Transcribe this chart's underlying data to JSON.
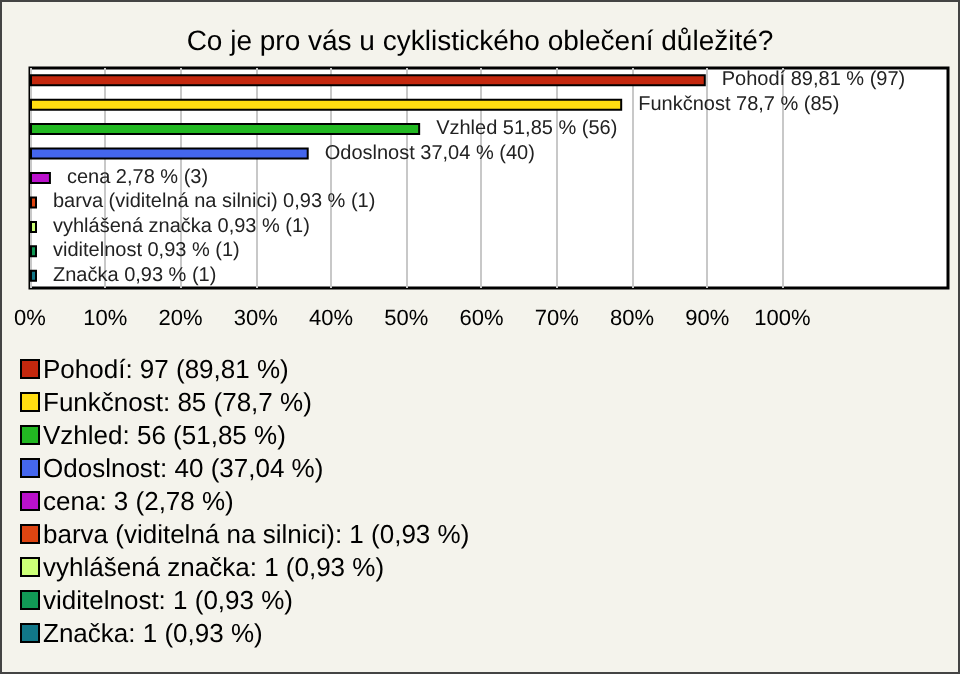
{
  "chart_data": {
    "type": "bar",
    "orientation": "horizontal",
    "title": "Co je pro vás u cyklistického oblečení důležité?",
    "categories": [
      null,
      null,
      null,
      null,
      null,
      null,
      null,
      null,
      null
    ],
    "series": [
      {
        "name": "Pohodí: 97 (89,81 %)",
        "color": "#c4280e",
        "values": [
          89.81,
          null,
          null,
          null,
          null,
          null,
          null,
          null,
          null
        ],
        "value_labels": [
          "Pohodí 89,81 % (97)",
          null,
          null,
          null,
          null,
          null,
          null,
          null,
          null
        ]
      },
      {
        "name": "Funkčnost: 85 (78,7 %)",
        "color": "#ffdd11",
        "values": [
          null,
          78.7,
          null,
          null,
          null,
          null,
          null,
          null,
          null
        ],
        "value_labels": [
          null,
          "Funkčnost 78,7 % (85)",
          null,
          null,
          null,
          null,
          null,
          null,
          null
        ]
      },
      {
        "name": "Vzhled: 56 (51,85 %)",
        "color": "#22b822",
        "values": [
          null,
          null,
          51.85,
          null,
          null,
          null,
          null,
          null,
          null
        ],
        "value_labels": [
          null,
          null,
          "Vzhled 51,85 % (56)",
          null,
          null,
          null,
          null,
          null,
          null
        ]
      },
      {
        "name": "Odoslnost: 40 (37,04 %)",
        "color": "#4466ee",
        "values": [
          null,
          null,
          null,
          37.04,
          null,
          null,
          null,
          null,
          null
        ],
        "value_labels": [
          null,
          null,
          null,
          "Odoslnost 37,04 % (40)",
          null,
          null,
          null,
          null,
          null
        ]
      },
      {
        "name": "cena: 3 (2,78 %)",
        "color": "#bb11cc",
        "values": [
          null,
          null,
          null,
          null,
          2.78,
          null,
          null,
          null,
          null
        ],
        "value_labels": [
          null,
          null,
          null,
          null,
          "cena 2,78 % (3)",
          null,
          null,
          null,
          null
        ]
      },
      {
        "name": "barva (viditelná na silnici): 1 (0,93 %)",
        "color": "#dd4411",
        "values": [
          null,
          null,
          null,
          null,
          null,
          0.93,
          null,
          null,
          null
        ],
        "value_labels": [
          null,
          null,
          null,
          null,
          null,
          "barva (viditelná na silnici) 0,93 % (1)",
          null,
          null,
          null
        ]
      },
      {
        "name": "vyhlášená značka: 1 (0,93 %)",
        "color": "#ccff77",
        "values": [
          null,
          null,
          null,
          null,
          null,
          null,
          0.93,
          null,
          null
        ],
        "value_labels": [
          null,
          null,
          null,
          null,
          null,
          null,
          "vyhlášená značka 0,93 % (1)",
          null,
          null
        ]
      },
      {
        "name": "viditelnost: 1 (0,93 %)",
        "color": "#119955",
        "values": [
          null,
          null,
          null,
          null,
          null,
          null,
          null,
          0.93,
          null
        ],
        "value_labels": [
          null,
          null,
          null,
          null,
          null,
          null,
          null,
          "viditelnost 0,93 % (1)",
          null
        ]
      },
      {
        "name": "Značka: 1 (0,93 %)",
        "color": "#117788",
        "values": [
          null,
          null,
          null,
          null,
          null,
          null,
          null,
          null,
          0.93
        ],
        "value_labels": [
          null,
          null,
          null,
          null,
          null,
          null,
          null,
          null,
          "Značka 0,93 % (1)"
        ]
      }
    ],
    "xlim": [
      0,
      122
    ],
    "xticks": [
      {
        "value": 0,
        "label": "0%"
      },
      {
        "value": 10,
        "label": "10%"
      },
      {
        "value": 20,
        "label": "20%"
      },
      {
        "value": 30,
        "label": "30%"
      },
      {
        "value": 40,
        "label": "40%"
      },
      {
        "value": 50,
        "label": "50%"
      },
      {
        "value": 60,
        "label": "60%"
      },
      {
        "value": 70,
        "label": "70%"
      },
      {
        "value": 80,
        "label": "80%"
      },
      {
        "value": 90,
        "label": "90%"
      },
      {
        "value": 100,
        "label": "100%"
      }
    ],
    "grid": "x",
    "legend": "bottom left",
    "tick_labels": "x"
  }
}
